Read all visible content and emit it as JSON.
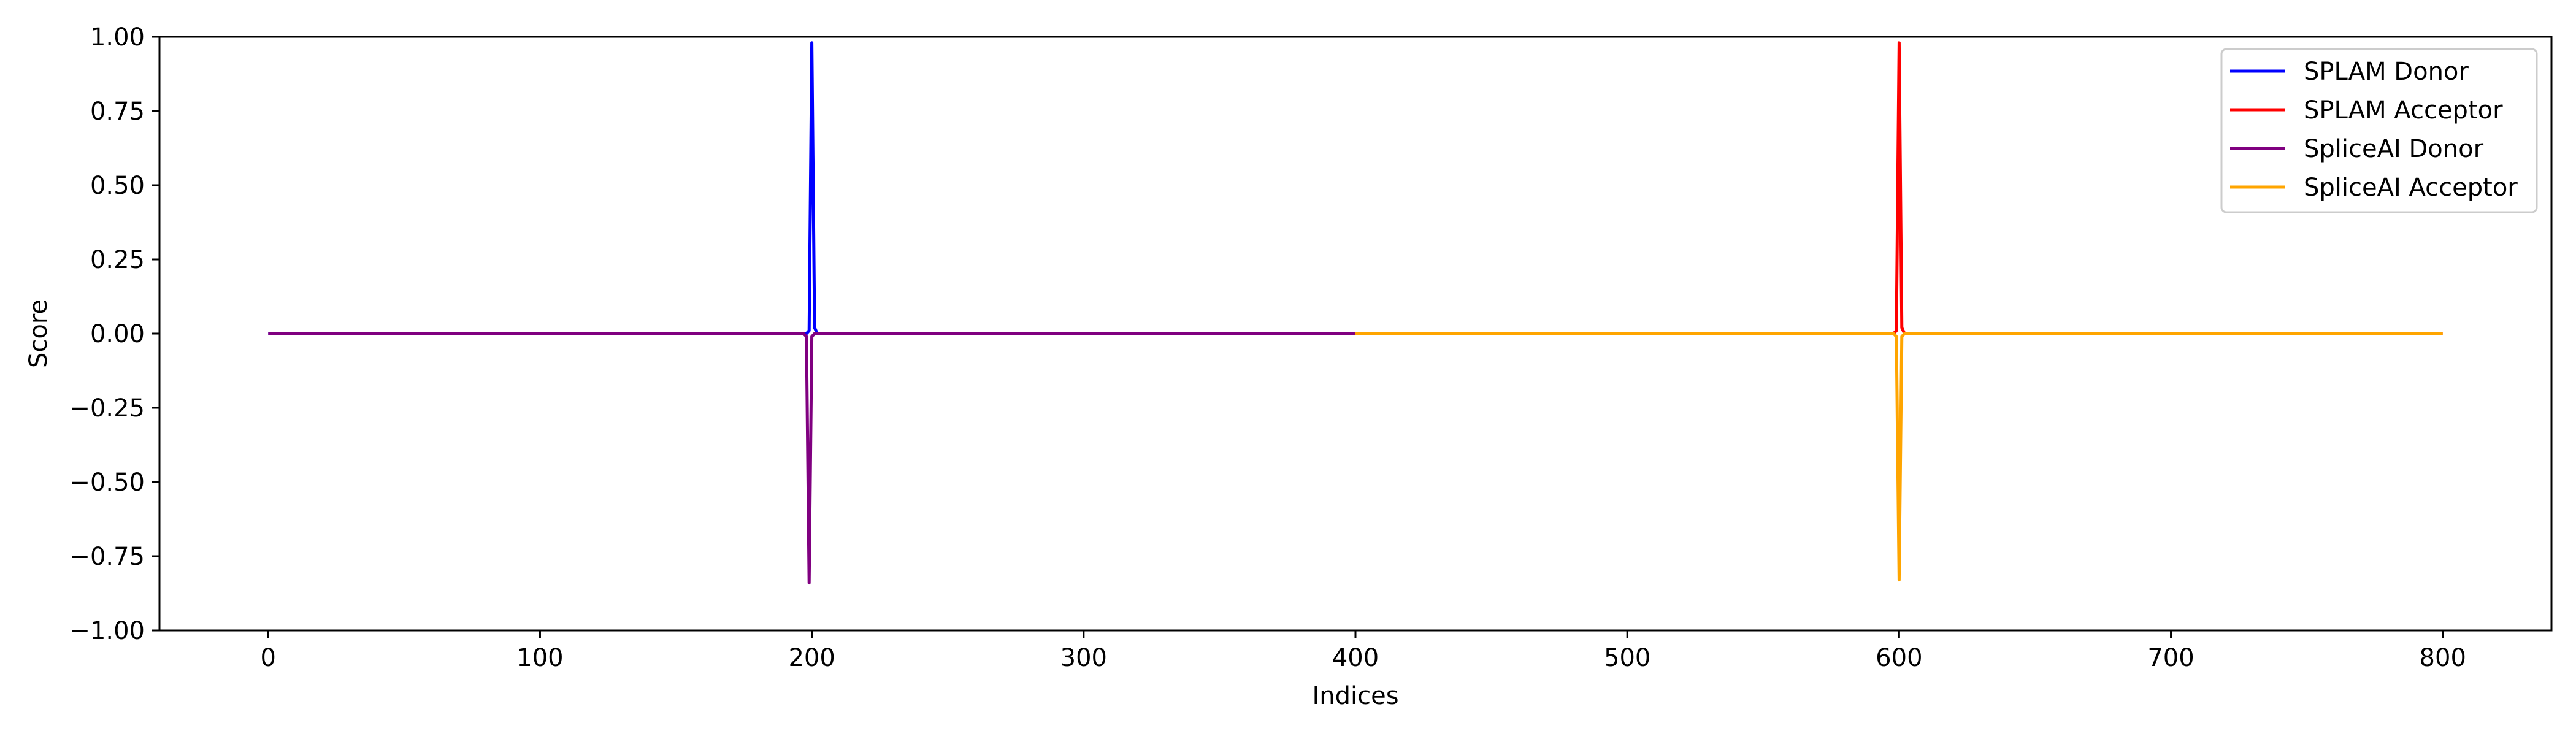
{
  "chart_data": {
    "type": "line",
    "title": "",
    "xlabel": "Indices",
    "ylabel": "Score",
    "xlim": [
      -40,
      840
    ],
    "ylim": [
      -1.0,
      1.0
    ],
    "xticks": [
      0,
      100,
      200,
      300,
      400,
      500,
      600,
      700,
      800
    ],
    "yticks": [
      -1.0,
      -0.75,
      -0.5,
      -0.25,
      0.0,
      0.25,
      0.5,
      0.75,
      1.0
    ],
    "ytick_labels": [
      "−1.00",
      "−0.75",
      "−0.50",
      "−0.25",
      "0.00",
      "0.25",
      "0.50",
      "0.75",
      "1.00"
    ],
    "grid": false,
    "legend_position": "top-right",
    "series": [
      {
        "name": "SPLAM Donor",
        "color": "#0000ff",
        "x": [
          0,
          198,
          199,
          200,
          201,
          202,
          400
        ],
        "y": [
          0.0,
          0.0,
          0.01,
          0.98,
          0.02,
          0.0,
          0.0
        ]
      },
      {
        "name": "SPLAM Acceptor",
        "color": "#ff0000",
        "x": [
          400,
          598,
          599,
          600,
          601,
          602,
          800
        ],
        "y": [
          0.0,
          0.0,
          0.01,
          0.98,
          0.02,
          0.0,
          0.0
        ]
      },
      {
        "name": "SpliceAI Donor",
        "color": "#800080",
        "x": [
          0,
          197,
          198,
          199,
          200,
          201,
          400
        ],
        "y": [
          0.0,
          0.0,
          -0.01,
          -0.84,
          -0.01,
          0.0,
          0.0
        ]
      },
      {
        "name": "SpliceAI Acceptor",
        "color": "#ffa500",
        "x": [
          400,
          598,
          599,
          600,
          601,
          602,
          800
        ],
        "y": [
          0.0,
          0.0,
          -0.01,
          -0.83,
          -0.01,
          0.0,
          0.0
        ]
      }
    ]
  }
}
